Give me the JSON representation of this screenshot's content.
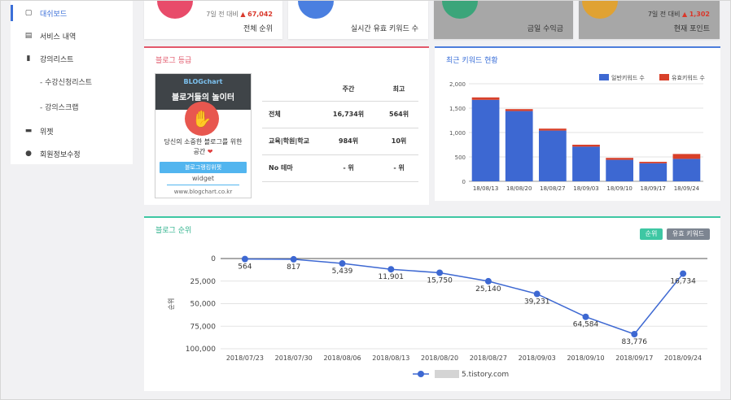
{
  "sidebar": {
    "items": [
      {
        "label": "대쉬보드",
        "icon": "monitor-icon"
      },
      {
        "label": "서비스 내역",
        "icon": "list-icon"
      },
      {
        "label": "강의리스트",
        "icon": "book-icon"
      },
      {
        "label": "- 수강신청리스트"
      },
      {
        "label": "- 강의스크랩"
      },
      {
        "label": "위젯",
        "icon": "widget-icon"
      },
      {
        "label": "회원정보수정",
        "icon": "user-icon"
      }
    ]
  },
  "cards": [
    {
      "sub_prefix": "7일 전 대비",
      "sub_value": "67,042",
      "label": "전체 순위",
      "circle_color": "#e84b6a"
    },
    {
      "label": "실시간 유효 키워드 수",
      "circle_color": "#4a7fe0"
    },
    {
      "label": "금일 수익금",
      "circle_color": "#3ba57a"
    },
    {
      "sub_prefix": "7일 전 대비",
      "sub_value": "1,302",
      "label": "현재 포인트",
      "circle_color": "#e0a233"
    }
  ],
  "grade": {
    "title": "블로그 등급",
    "widget": {
      "logo": "BLOGchart",
      "slogan": "블로거들의 놀이터",
      "message": "당신의 소중한 블로그를 위한 공간",
      "button": "블로그랭킹위젯",
      "label": "widget",
      "url": "www.blogchart.co.kr"
    },
    "table": {
      "headers": [
        "",
        "주간",
        "최고"
      ],
      "rows": [
        {
          "category": "전체",
          "weekly": "16,734위",
          "best": "564위"
        },
        {
          "category": "교육|학원|학교",
          "weekly": "984위",
          "best": "10위"
        },
        {
          "category": "No 테마",
          "weekly": "- 위",
          "best": "- 위"
        }
      ]
    }
  },
  "keywords": {
    "title": "최근 키워드 현황",
    "chart_data": {
      "type": "bar",
      "stacked": true,
      "categories": [
        "18/08/13",
        "18/08/20",
        "18/08/27",
        "18/09/03",
        "18/09/10",
        "18/09/17",
        "18/09/24"
      ],
      "series": [
        {
          "name": "일반키워드 수",
          "color": "#3d68d2",
          "values": [
            1670,
            1440,
            1040,
            710,
            440,
            370,
            460
          ]
        },
        {
          "name": "유효키워드 수",
          "color": "#d8402a",
          "values": [
            50,
            40,
            40,
            40,
            40,
            30,
            100
          ]
        }
      ],
      "yticks": [
        "0",
        "500",
        "1,000",
        "1,500",
        "2,000"
      ],
      "ylim": [
        0,
        2000
      ],
      "legend": "top-right",
      "grid": true
    }
  },
  "ranking": {
    "title": "블로그 순위",
    "btn_rank": "순위",
    "btn_kw": "유효 키워드",
    "chart_data": {
      "type": "line",
      "x": [
        "2018/07/23",
        "2018/07/30",
        "2018/08/06",
        "2018/08/13",
        "2018/08/20",
        "2018/08/27",
        "2018/09/03",
        "2018/09/10",
        "2018/09/17",
        "2018/09/24"
      ],
      "series": [
        {
          "name": "5.tistory.com",
          "color": "#3d68d2",
          "values": [
            564,
            817,
            5439,
            11901,
            15750,
            25140,
            39231,
            64584,
            83776,
            16734
          ],
          "labels": [
            "564",
            "817",
            "5,439",
            "11,901",
            "15,750",
            "25,140",
            "39,231",
            "64,584",
            "83,776",
            "16,734"
          ]
        }
      ],
      "ylabel": "순위",
      "yticks": [
        "0",
        "25,000",
        "50,000",
        "75,000",
        "100,000"
      ],
      "ylim": [
        0,
        100000
      ],
      "y_reversed": true,
      "legend": "bottom-center",
      "grid": true
    }
  }
}
